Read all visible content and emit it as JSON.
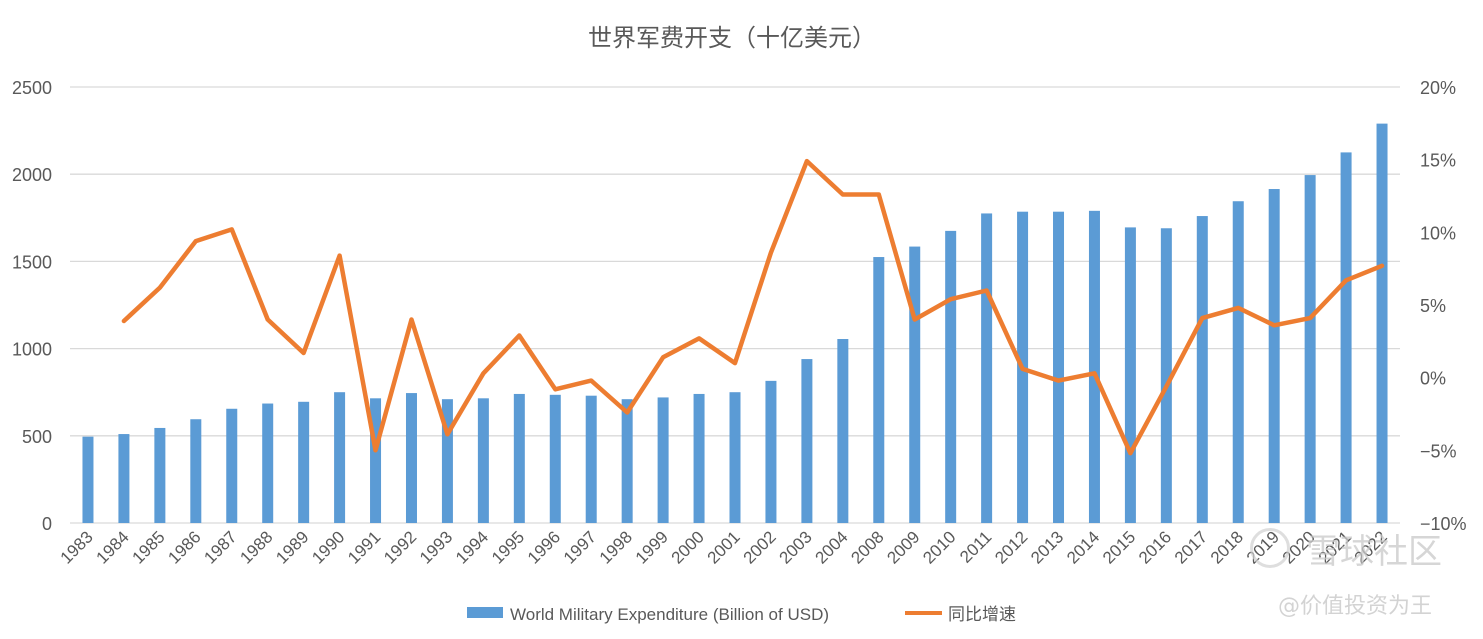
{
  "chart_data": {
    "type": "bar+line",
    "title": "世界军费开支（十亿美元）",
    "categories": [
      "1983",
      "1984",
      "1985",
      "1986",
      "1987",
      "1988",
      "1989",
      "1990",
      "1991",
      "1992",
      "1993",
      "1994",
      "1995",
      "1996",
      "1997",
      "1998",
      "1999",
      "2000",
      "2001",
      "2002",
      "2003",
      "2004",
      "2008",
      "2009",
      "2010",
      "2011",
      "2012",
      "2013",
      "2014",
      "2015",
      "2016",
      "2017",
      "2018",
      "2019",
      "2020",
      "2021",
      "2022"
    ],
    "series": [
      {
        "name": "World Military Expenditure (Billion of USD)",
        "kind": "bar",
        "axis": "left",
        "color": "#5b9bd5",
        "values": [
          495,
          510,
          545,
          595,
          655,
          685,
          695,
          750,
          715,
          745,
          710,
          715,
          740,
          735,
          730,
          710,
          720,
          740,
          750,
          815,
          940,
          1055,
          1525,
          1585,
          1675,
          1775,
          1785,
          1785,
          1790,
          1695,
          1690,
          1760,
          1845,
          1915,
          1995,
          2125,
          2290
        ]
      },
      {
        "name": "同比增速",
        "kind": "line",
        "axis": "right",
        "color": "#ed7d31",
        "values": [
          null,
          3.9,
          6.2,
          9.4,
          10.2,
          4.0,
          1.7,
          8.4,
          -5.0,
          4.0,
          -3.9,
          0.3,
          2.9,
          -0.8,
          -0.2,
          -2.4,
          1.4,
          2.7,
          1.0,
          8.6,
          14.9,
          12.6,
          12.6,
          4.0,
          5.4,
          6.0,
          0.6,
          -0.2,
          0.3,
          -5.2,
          -0.6,
          4.1,
          4.8,
          3.6,
          4.1,
          6.7,
          7.7
        ]
      }
    ],
    "y_left": {
      "min": 0,
      "max": 2500,
      "ticks": [
        0,
        500,
        1000,
        1500,
        2000,
        2500
      ],
      "tick_labels": [
        "0",
        "500",
        "1000",
        "1500",
        "2000",
        "2500"
      ]
    },
    "y_right": {
      "min": -10,
      "max": 20,
      "ticks": [
        -10,
        -5,
        0,
        5,
        10,
        15,
        20
      ],
      "tick_labels": [
        "−10%",
        "−5%",
        "0%",
        "5%",
        "10%",
        "15%",
        "20%"
      ]
    },
    "grid": true,
    "legend_position": "bottom",
    "gridline_color": "#d9d9d9",
    "axis_text_color": "#595959"
  },
  "watermark": {
    "line1": "雪球社区",
    "line2": "@价值投资为王"
  }
}
